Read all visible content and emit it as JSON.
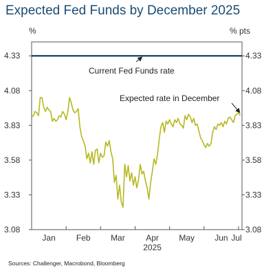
{
  "chart_data": {
    "type": "line",
    "title": "Expected Fed Funds by December 2025",
    "ylabel_left": "%",
    "ylabel_right": "% pts",
    "source": "Sources: Challenger, Macrobond, Bloomberg",
    "ylim": [
      3.08,
      4.43
    ],
    "yticks": [
      "4.33",
      "4.08",
      "3.83",
      "3.58",
      "3.33",
      "3.08"
    ],
    "ytick_values": [
      4.33,
      4.08,
      3.83,
      3.58,
      3.33,
      3.08
    ],
    "xlim": [
      0,
      6.1
    ],
    "month_ticks": [
      {
        "label": "Jan",
        "x": 0.5
      },
      {
        "label": "Feb",
        "x": 1.5
      },
      {
        "label": "Mar",
        "x": 2.5
      },
      {
        "label": "Apr",
        "x": 3.5
      },
      {
        "label": "May",
        "x": 4.5
      },
      {
        "label": "Jun",
        "x": 5.5
      },
      {
        "label": "Jul",
        "x": 6.5
      }
    ],
    "year_label": "2025",
    "grid": false,
    "colors": {
      "current": "#173e5c",
      "expected": "#b5b81e",
      "title": "#1b4b72"
    },
    "series": [
      {
        "name": "Current Fed Funds rate",
        "x": [
          0,
          6.1
        ],
        "y": [
          4.33,
          4.33
        ]
      },
      {
        "name": "Expected rate in December",
        "x": [
          0.0,
          0.05,
          0.1,
          0.15,
          0.2,
          0.25,
          0.3,
          0.35,
          0.4,
          0.45,
          0.5,
          0.55,
          0.6,
          0.65,
          0.7,
          0.75,
          0.8,
          0.85,
          0.9,
          0.95,
          1.0,
          1.05,
          1.1,
          1.15,
          1.2,
          1.25,
          1.3,
          1.35,
          1.4,
          1.45,
          1.5,
          1.55,
          1.6,
          1.65,
          1.7,
          1.75,
          1.8,
          1.85,
          1.9,
          1.95,
          2.0,
          2.05,
          2.1,
          2.15,
          2.2,
          2.25,
          2.3,
          2.35,
          2.4,
          2.45,
          2.5,
          2.55,
          2.6,
          2.65,
          2.7,
          2.75,
          2.8,
          2.85,
          2.9,
          2.95,
          3.0,
          3.05,
          3.1,
          3.15,
          3.2,
          3.25,
          3.3,
          3.35,
          3.4,
          3.45,
          3.5,
          3.55,
          3.6,
          3.65,
          3.7,
          3.75,
          3.8,
          3.85,
          3.9,
          3.95,
          4.0,
          4.05,
          4.1,
          4.15,
          4.2,
          4.25,
          4.3,
          4.35,
          4.4,
          4.45,
          4.5,
          4.55,
          4.6,
          4.65,
          4.7,
          4.75,
          4.8,
          4.85,
          4.9,
          4.95,
          5.0,
          5.05,
          5.1,
          5.15,
          5.2,
          5.25,
          5.3,
          5.35,
          5.4,
          5.45,
          5.5,
          5.55,
          5.6,
          5.65,
          5.7,
          5.75,
          5.8,
          5.85,
          5.9,
          5.95,
          6.0,
          6.05
        ],
        "y": [
          3.89,
          3.9,
          3.93,
          3.92,
          3.9,
          4.03,
          4.03,
          3.96,
          3.93,
          3.96,
          3.94,
          3.93,
          3.86,
          3.88,
          3.86,
          3.87,
          3.9,
          3.89,
          3.93,
          3.91,
          3.87,
          3.93,
          4.03,
          3.99,
          3.94,
          3.92,
          3.93,
          3.95,
          3.82,
          3.75,
          3.72,
          3.68,
          3.59,
          3.63,
          3.56,
          3.64,
          3.55,
          3.65,
          3.66,
          3.56,
          3.63,
          3.6,
          3.61,
          3.71,
          3.68,
          3.72,
          3.64,
          3.59,
          3.42,
          3.47,
          3.3,
          3.4,
          3.28,
          3.24,
          3.55,
          3.46,
          3.54,
          3.43,
          3.49,
          3.4,
          3.46,
          3.38,
          3.44,
          3.55,
          3.48,
          3.5,
          3.43,
          3.38,
          3.3,
          3.42,
          3.5,
          3.59,
          3.55,
          3.62,
          3.73,
          3.82,
          3.85,
          3.78,
          3.86,
          3.84,
          3.87,
          3.84,
          3.82,
          3.87,
          3.85,
          3.88,
          3.84,
          3.83,
          3.81,
          3.9,
          3.87,
          3.91,
          3.89,
          3.85,
          3.88,
          3.83,
          3.84,
          3.79,
          3.74,
          3.72,
          3.69,
          3.67,
          3.7,
          3.68,
          3.7,
          3.78,
          3.82,
          3.8,
          3.84,
          3.83,
          3.85,
          3.82,
          3.86,
          3.84,
          3.88,
          3.89,
          3.87,
          3.85,
          3.9,
          3.91,
          3.92,
          3.9
        ]
      }
    ],
    "annotations": [
      {
        "text": "Current Fed Funds rate",
        "points_to": "current"
      },
      {
        "text": "Expected rate in December",
        "points_to": "expected-end"
      }
    ]
  }
}
